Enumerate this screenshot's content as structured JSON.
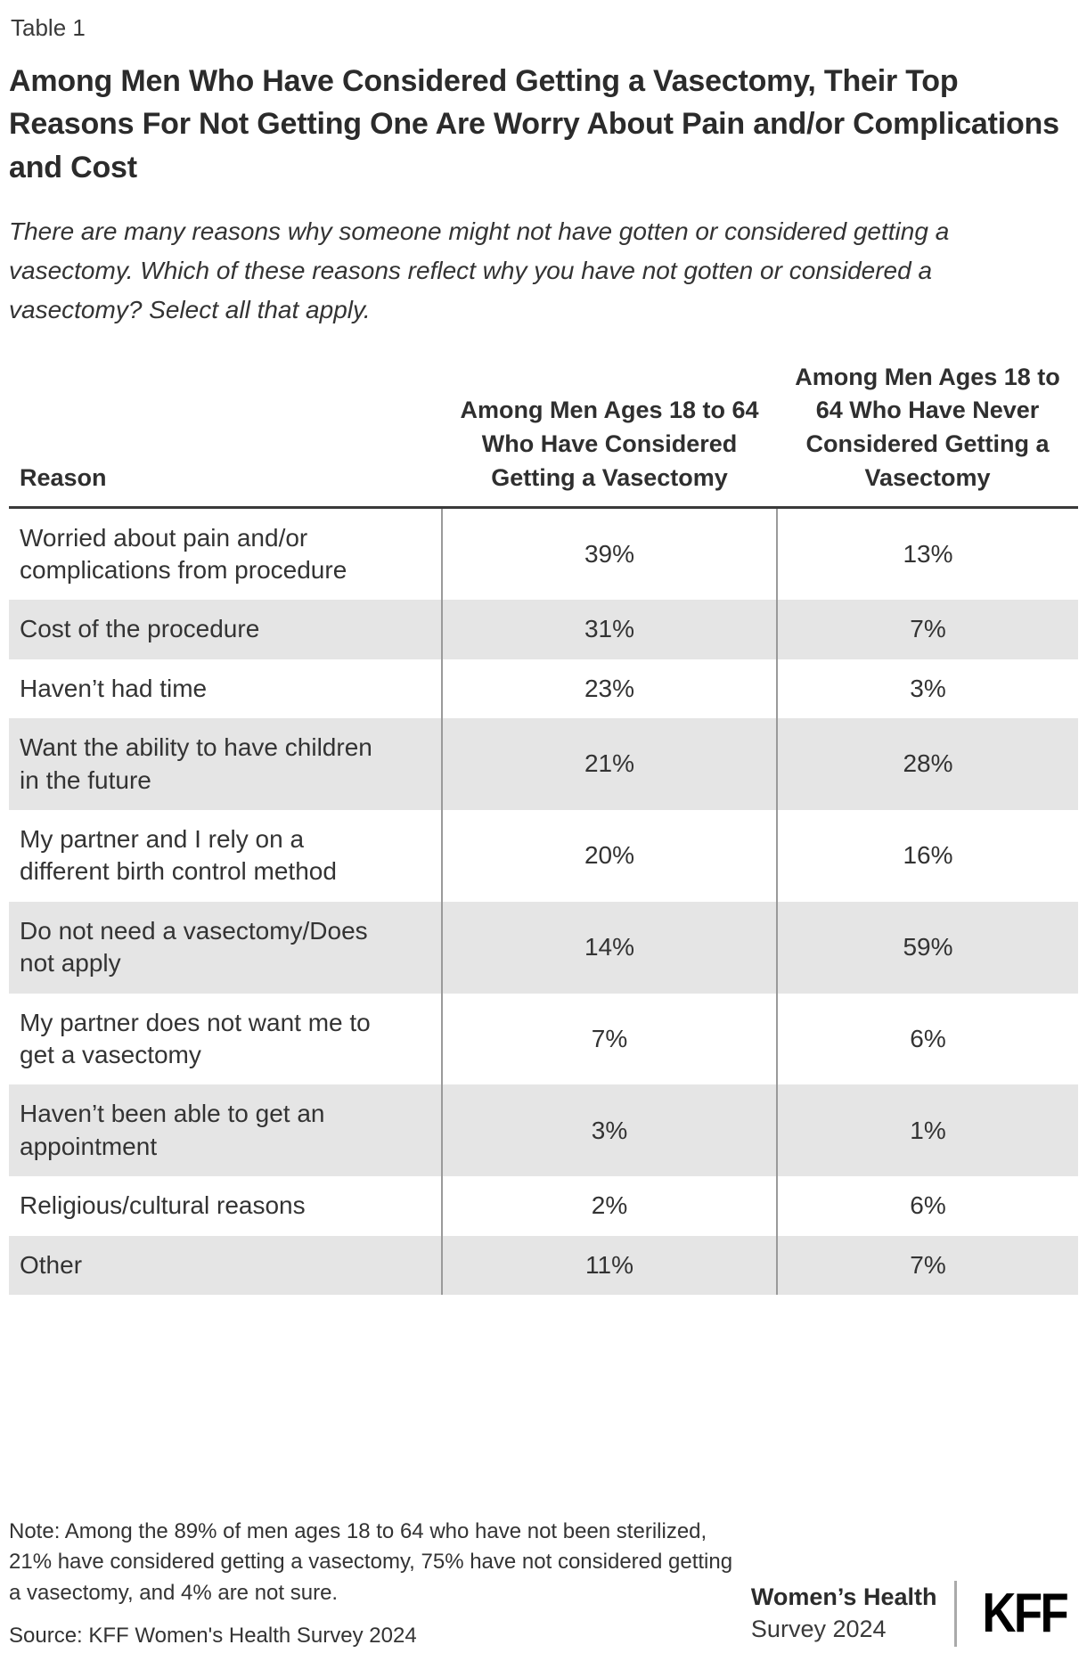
{
  "page": {
    "table_label": "Table 1",
    "title": "Among Men Who Have Considered Getting a Vasectomy, Their Top Reasons For Not Getting One Are Worry About Pain and/or Complications and Cost",
    "subtitle": "There are many reasons why someone might not have gotten or considered getting a vasectomy. Which of these reasons reflect why you have not gotten or considered a vasectomy? Select all that apply.",
    "note": "Note: Among the 89% of men ages 18 to 64 who have not been sterilized, 21% have considered getting a vasectomy, 75% have not considered getting a vasectomy, and 4% are not sure.",
    "source": "Source: KFF Women's Health Survey 2024",
    "brand": {
      "line1": "Women’s Health",
      "line2": "Survey 2024",
      "logo": "KFF"
    }
  },
  "chart_data": {
    "type": "table",
    "title": "Among Men Who Have Considered Getting a Vasectomy, Their Top Reasons For Not Getting One Are Worry About Pain and/or Complications and Cost",
    "columns": [
      "Reason",
      "Among Men Ages 18 to 64 Who Have Considered Getting a Vasectomy",
      "Among Men Ages 18 to 64 Who Have Never Considered Getting a Vasectomy"
    ],
    "rows": [
      [
        "Worried about pain and/or complications from procedure",
        "39%",
        "13%"
      ],
      [
        "Cost of the procedure",
        "31%",
        "7%"
      ],
      [
        "Haven’t had time",
        "23%",
        "3%"
      ],
      [
        "Want the ability to have children in the future",
        "21%",
        "28%"
      ],
      [
        "My partner and I rely on a different birth control method",
        "20%",
        "16%"
      ],
      [
        "Do not need a vasectomy/Does not apply",
        "14%",
        "59%"
      ],
      [
        "My partner does not want me to get a vasectomy",
        "7%",
        "6%"
      ],
      [
        "Haven’t been able to get an appointment",
        "3%",
        "1%"
      ],
      [
        "Religious/cultural reasons",
        "2%",
        "6%"
      ],
      [
        "Other",
        "11%",
        "7%"
      ]
    ],
    "values_unit": "percent",
    "layout": {
      "zebra_striping": true,
      "stripe_color": "#e5e5e5",
      "header_rule_color": "#3a3a3a",
      "column_divider_color": "#9a9a9a"
    }
  },
  "colors": {
    "text_dark": "#333333",
    "title_dark": "#2b2b2b",
    "row_stripe": "#e5e5e5",
    "column_divider": "#9a9a9a",
    "logo_black": "#000000"
  }
}
